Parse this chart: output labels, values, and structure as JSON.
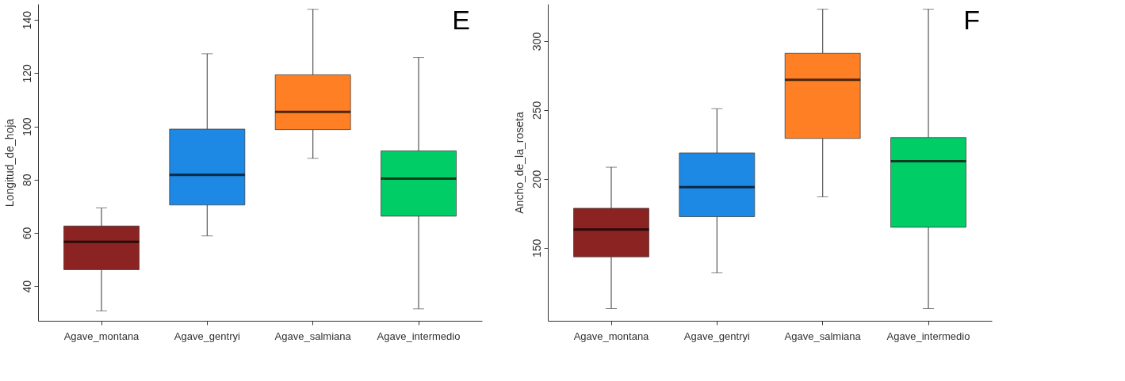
{
  "chart_data": [
    {
      "type": "box",
      "ylabel": "Longitud_de_hoja",
      "annotations": [
        "E"
      ],
      "categories": [
        "Agave_montana",
        "Agave_gentryi",
        "Agave_salmiana",
        "Agave_intermedio"
      ],
      "colors": [
        "#8b2323",
        "#1e88e5",
        "#ff7f24",
        "#00cd66"
      ],
      "boxes": [
        {
          "low": 30.7,
          "q1": 46.2,
          "median": 56.7,
          "q3": 62.6,
          "high": 69.4
        },
        {
          "low": 58.9,
          "q1": 70.5,
          "median": 81.8,
          "q3": 99.0,
          "high": 127.3
        },
        {
          "low": 88,
          "q1": 98.8,
          "median": 105.5,
          "q3": 119.4,
          "high": 144
        },
        {
          "low": 31.5,
          "q1": 66.3,
          "median": 80.4,
          "q3": 90.8,
          "high": 125.9
        }
      ],
      "ylim": [
        27,
        146
      ],
      "yticks": [
        40,
        60,
        80,
        100,
        120,
        140
      ],
      "grid": false
    },
    {
      "type": "box",
      "ylabel": "Ancho_de_la_roseta",
      "annotations": [
        "F"
      ],
      "categories": [
        "Agave_montana",
        "Agave_gentryi",
        "Agave_salmiana",
        "Agave_intermedio"
      ],
      "colors": [
        "#8b2323",
        "#1e88e5",
        "#ff7f24",
        "#00cd66"
      ],
      "boxes": [
        {
          "low": 105.9,
          "q1": 143.4,
          "median": 163.2,
          "q3": 178.7,
          "high": 208.5
        },
        {
          "low": 131.8,
          "q1": 172.6,
          "median": 194.1,
          "q3": 218.9,
          "high": 251
        },
        {
          "low": 187,
          "q1": 229.4,
          "median": 271.9,
          "q3": 291.2,
          "high": 323.2
        },
        {
          "low": 105.9,
          "q1": 164.9,
          "median": 212.9,
          "q3": 230,
          "high": 323.2
        }
      ],
      "ylim": [
        97,
        327
      ],
      "yticks": [
        150,
        200,
        250,
        300
      ],
      "grid": false
    }
  ]
}
